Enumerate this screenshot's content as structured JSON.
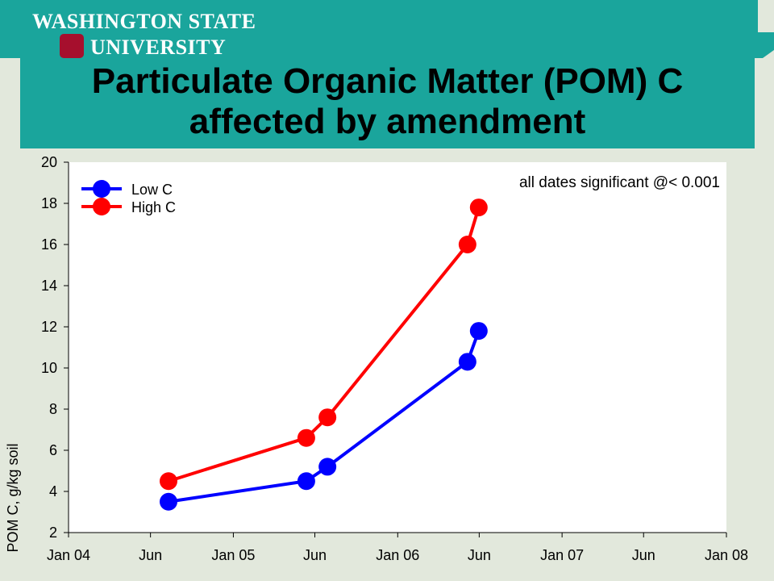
{
  "logo": {
    "line1": "WASHINGTON STATE",
    "line2": "UNIVERSITY"
  },
  "slide": {
    "title": "Particulate Organic Matter (POM) C affected by amendment"
  },
  "colors": {
    "title_band": "#1aa59c",
    "stripe": "#1aa59c",
    "background": "#e2e8dc",
    "plot_area": "#ffffff",
    "low_c": "#0000ff",
    "high_c": "#ff0000",
    "seal": "#a60f2d"
  },
  "chart_data": {
    "type": "line",
    "title": "",
    "xlabel": "",
    "ylabel": "POM C, g/kg soil",
    "ylim": [
      2,
      20
    ],
    "yticks": [
      2,
      4,
      6,
      8,
      10,
      12,
      14,
      16,
      18,
      20
    ],
    "xlim": [
      "2004-01-01",
      "2008-01-01"
    ],
    "xticks": [
      {
        "date": "2004-01-01",
        "label": "Jan 04"
      },
      {
        "date": "2004-07-01",
        "label": "Jun"
      },
      {
        "date": "2005-01-01",
        "label": "Jan 05"
      },
      {
        "date": "2005-07-01",
        "label": "Jun"
      },
      {
        "date": "2006-01-01",
        "label": "Jan 06"
      },
      {
        "date": "2006-07-01",
        "label": "Jun"
      },
      {
        "date": "2007-01-01",
        "label": "Jan 07"
      },
      {
        "date": "2007-07-01",
        "label": "Jun"
      },
      {
        "date": "2008-01-01",
        "label": "Jan 08"
      }
    ],
    "grid": false,
    "legend": "top-left",
    "annotation": "all dates significant @< 0.001",
    "series": [
      {
        "name": "Low C",
        "color": "#0000ff",
        "x": [
          "2004-08-10",
          "2005-06-12",
          "2005-07-29",
          "2006-06-05",
          "2006-06-30"
        ],
        "y": [
          3.5,
          4.5,
          5.2,
          10.3,
          11.8
        ]
      },
      {
        "name": "High C",
        "color": "#ff0000",
        "x": [
          "2004-08-10",
          "2005-06-12",
          "2005-07-29",
          "2006-06-05",
          "2006-06-30"
        ],
        "y": [
          4.5,
          6.6,
          7.6,
          16.0,
          17.8
        ]
      }
    ]
  }
}
